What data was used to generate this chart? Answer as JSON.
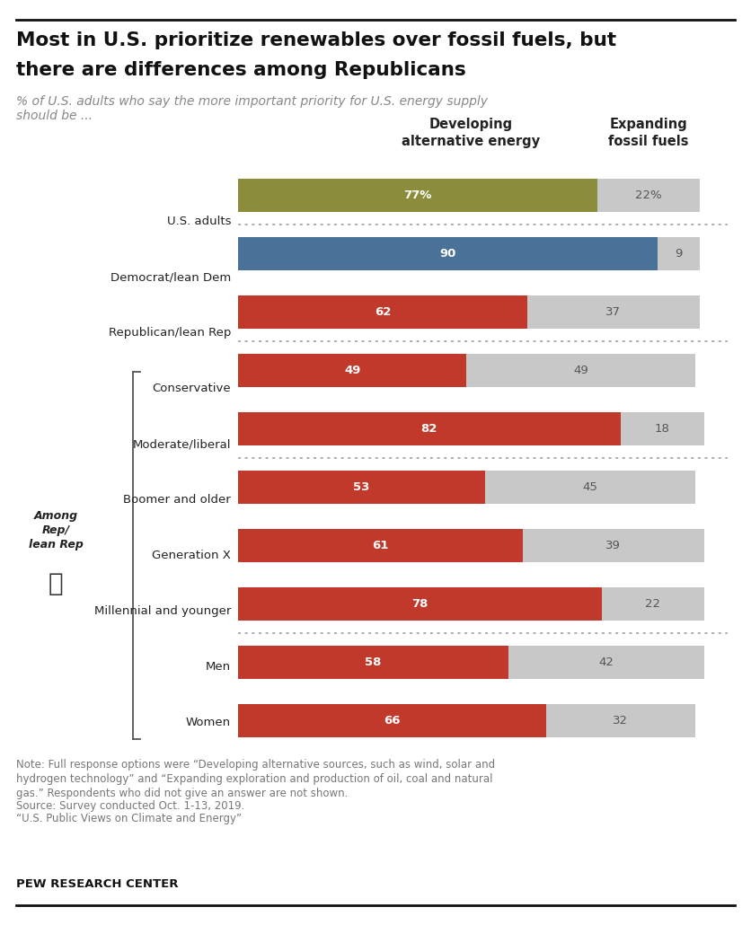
{
  "title_line1": "Most in U.S. prioritize renewables over fossil fuels, but",
  "title_line2": "there are differences among Republicans",
  "subtitle": "% of U.S. adults who say the more important priority for U.S. energy supply\nshould be ...",
  "col_header_left": "Developing\nalternative energy",
  "col_header_right": "Expanding\nfossil fuels",
  "categories": [
    "U.S. adults",
    "Democrat/lean Dem",
    "Republican/lean Rep",
    "Conservative",
    "Moderate/liberal",
    "Boomer and older",
    "Generation X",
    "Millennial and younger",
    "Men",
    "Women"
  ],
  "alt_energy": [
    77,
    90,
    62,
    49,
    82,
    53,
    61,
    78,
    58,
    66
  ],
  "fossil_fuel": [
    22,
    9,
    37,
    49,
    18,
    45,
    39,
    22,
    42,
    32
  ],
  "alt_labels": [
    "77%",
    "90",
    "62",
    "49",
    "82",
    "53",
    "61",
    "78",
    "58",
    "66"
  ],
  "fossil_labels": [
    "22%",
    "9",
    "37",
    "49",
    "18",
    "45",
    "39",
    "22",
    "42",
    "32"
  ],
  "bar_colors_alt": [
    "#8b8c3c",
    "#4a7298",
    "#c0392b",
    "#c0392b",
    "#c0392b",
    "#c0392b",
    "#c0392b",
    "#c0392b",
    "#c0392b",
    "#c0392b"
  ],
  "bar_color_fossil": "#c8c8c8",
  "note_line1": "Note: Full response options were “Developing alternative sources, such as wind, solar and",
  "note_line2": "hydrogen technology” and “Expanding exploration and production of oil, coal and natural",
  "note_line3": "gas.” Respondents who did not give an answer are not shown.",
  "note_line4": "Source: Survey conducted Oct. 1-13, 2019.",
  "note_line5": "“U.S. Public Views on Climate and Energy”",
  "source_bold": "PEW RESEARCH CENTER",
  "dotted_separator_after": [
    0,
    2,
    4,
    7
  ],
  "among_rep_label": "Among\nRep/\nlean Rep",
  "background_color": "#ffffff",
  "bar_xlim": 105,
  "bar_max_display": 100
}
